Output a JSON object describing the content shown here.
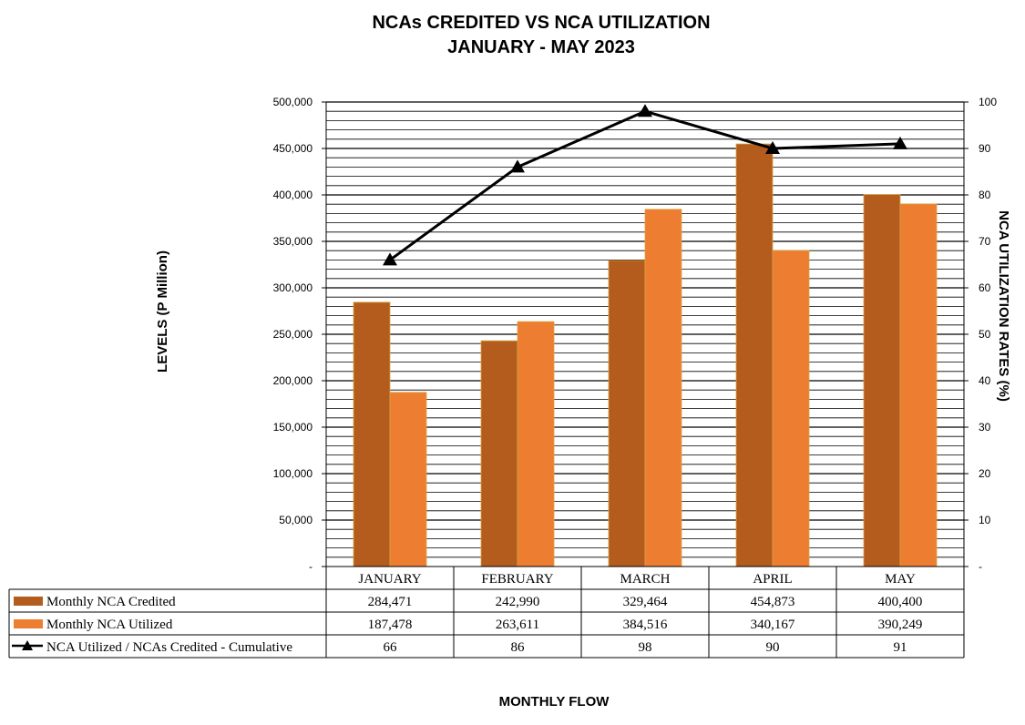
{
  "chart_data": {
    "type": "bar",
    "title": "NCAs CREDITED VS NCA UTILIZATION",
    "subtitle": "JANUARY - MAY 2023",
    "xlabel": "MONTHLY FLOW",
    "ylabel": "LEVELS (P Million)",
    "y2label": "NCA UTILIZATION RATES (%)",
    "categories": [
      "JANUARY",
      "FEBRUARY",
      "MARCH",
      "APRIL",
      "MAY"
    ],
    "ylim": [
      0,
      500000
    ],
    "y2lim": [
      0,
      100
    ],
    "yticks": [
      "-",
      "50,000",
      "100,000",
      "150,000",
      "200,000",
      "250,000",
      "300,000",
      "350,000",
      "400,000",
      "450,000",
      "500,000"
    ],
    "y2ticks": [
      "-",
      "10",
      "20",
      "30",
      "40",
      "50",
      "60",
      "70",
      "80",
      "90",
      "100"
    ],
    "grid": true,
    "legend_placement": "data-table",
    "series": [
      {
        "name": "Monthly NCA Credited",
        "type": "bar",
        "axis": "left",
        "color": "#b35c1e",
        "values": [
          284471,
          242990,
          329464,
          454873,
          400400
        ],
        "labels": [
          "284,471",
          "242,990",
          "329,464",
          "454,873",
          "400,400"
        ]
      },
      {
        "name": "Monthly NCA Utilized",
        "type": "bar",
        "axis": "left",
        "color": "#ed7d31",
        "values": [
          187478,
          263611,
          384516,
          340167,
          390249
        ],
        "labels": [
          "187,478",
          "263,611",
          "384,516",
          "340,167",
          "390,249"
        ]
      },
      {
        "name": "NCA Utilized / NCAs Credited - Cumulative",
        "type": "line",
        "axis": "right",
        "color": "#000000",
        "marker": "triangle",
        "values": [
          66,
          86,
          98,
          90,
          91
        ],
        "labels": [
          "66",
          "86",
          "98",
          "90",
          "91"
        ]
      }
    ]
  }
}
